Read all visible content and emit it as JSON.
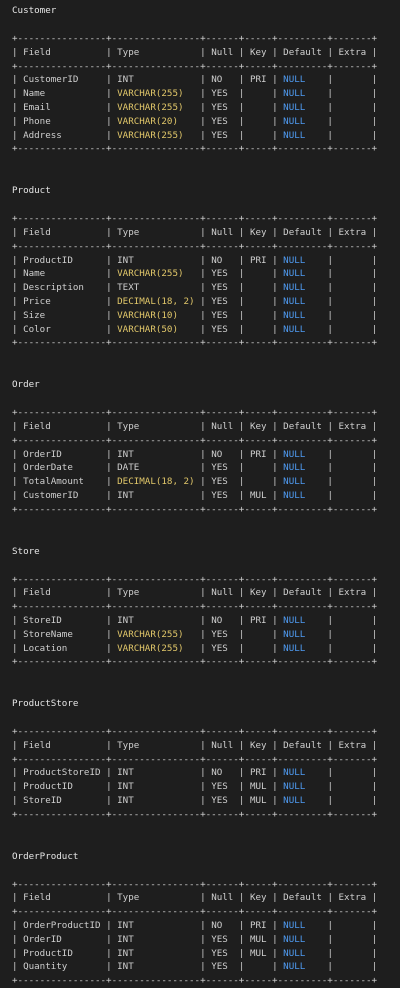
{
  "colors": {
    "background": "#1e1e1e",
    "text": "#cfcfcf",
    "string_type": "#e2c86a",
    "null_keyword": "#4f9bf2"
  },
  "columns": [
    "Field",
    "Type",
    "Null",
    "Key",
    "Default",
    "Extra"
  ],
  "tables": [
    {
      "name": "Customer",
      "rows": [
        [
          "CustomerID",
          "INT",
          "NO",
          "PRI",
          "NULL",
          ""
        ],
        [
          "Name",
          "VARCHAR(255)",
          "YES",
          "",
          "NULL",
          ""
        ],
        [
          "Email",
          "VARCHAR(255)",
          "YES",
          "",
          "NULL",
          ""
        ],
        [
          "Phone",
          "VARCHAR(20)",
          "YES",
          "",
          "NULL",
          ""
        ],
        [
          "Address",
          "VARCHAR(255)",
          "YES",
          "",
          "NULL",
          ""
        ]
      ]
    },
    {
      "name": "Product",
      "rows": [
        [
          "ProductID",
          "INT",
          "NO",
          "PRI",
          "NULL",
          ""
        ],
        [
          "Name",
          "VARCHAR(255)",
          "YES",
          "",
          "NULL",
          ""
        ],
        [
          "Description",
          "TEXT",
          "YES",
          "",
          "NULL",
          ""
        ],
        [
          "Price",
          "DECIMAL(18, 2)",
          "YES",
          "",
          "NULL",
          ""
        ],
        [
          "Size",
          "VARCHAR(10)",
          "YES",
          "",
          "NULL",
          ""
        ],
        [
          "Color",
          "VARCHAR(50)",
          "YES",
          "",
          "NULL",
          ""
        ]
      ]
    },
    {
      "name": "Order",
      "rows": [
        [
          "OrderID",
          "INT",
          "NO",
          "PRI",
          "NULL",
          ""
        ],
        [
          "OrderDate",
          "DATE",
          "YES",
          "",
          "NULL",
          ""
        ],
        [
          "TotalAmount",
          "DECIMAL(18, 2)",
          "YES",
          "",
          "NULL",
          ""
        ],
        [
          "CustomerID",
          "INT",
          "YES",
          "MUL",
          "NULL",
          ""
        ]
      ]
    },
    {
      "name": "Store",
      "rows": [
        [
          "StoreID",
          "INT",
          "NO",
          "PRI",
          "NULL",
          ""
        ],
        [
          "StoreName",
          "VARCHAR(255)",
          "YES",
          "",
          "NULL",
          ""
        ],
        [
          "Location",
          "VARCHAR(255)",
          "YES",
          "",
          "NULL",
          ""
        ]
      ]
    },
    {
      "name": "ProductStore",
      "rows": [
        [
          "ProductStoreID",
          "INT",
          "NO",
          "PRI",
          "NULL",
          ""
        ],
        [
          "ProductID",
          "INT",
          "YES",
          "MUL",
          "NULL",
          ""
        ],
        [
          "StoreID",
          "INT",
          "YES",
          "MUL",
          "NULL",
          ""
        ]
      ]
    },
    {
      "name": "OrderProduct",
      "rows": [
        [
          "OrderProductID",
          "INT",
          "NO",
          "PRI",
          "NULL",
          ""
        ],
        [
          "OrderID",
          "INT",
          "YES",
          "MUL",
          "NULL",
          ""
        ],
        [
          "ProductID",
          "INT",
          "YES",
          "MUL",
          "NULL",
          ""
        ],
        [
          "Quantity",
          "INT",
          "YES",
          "",
          "NULL",
          ""
        ]
      ]
    }
  ]
}
